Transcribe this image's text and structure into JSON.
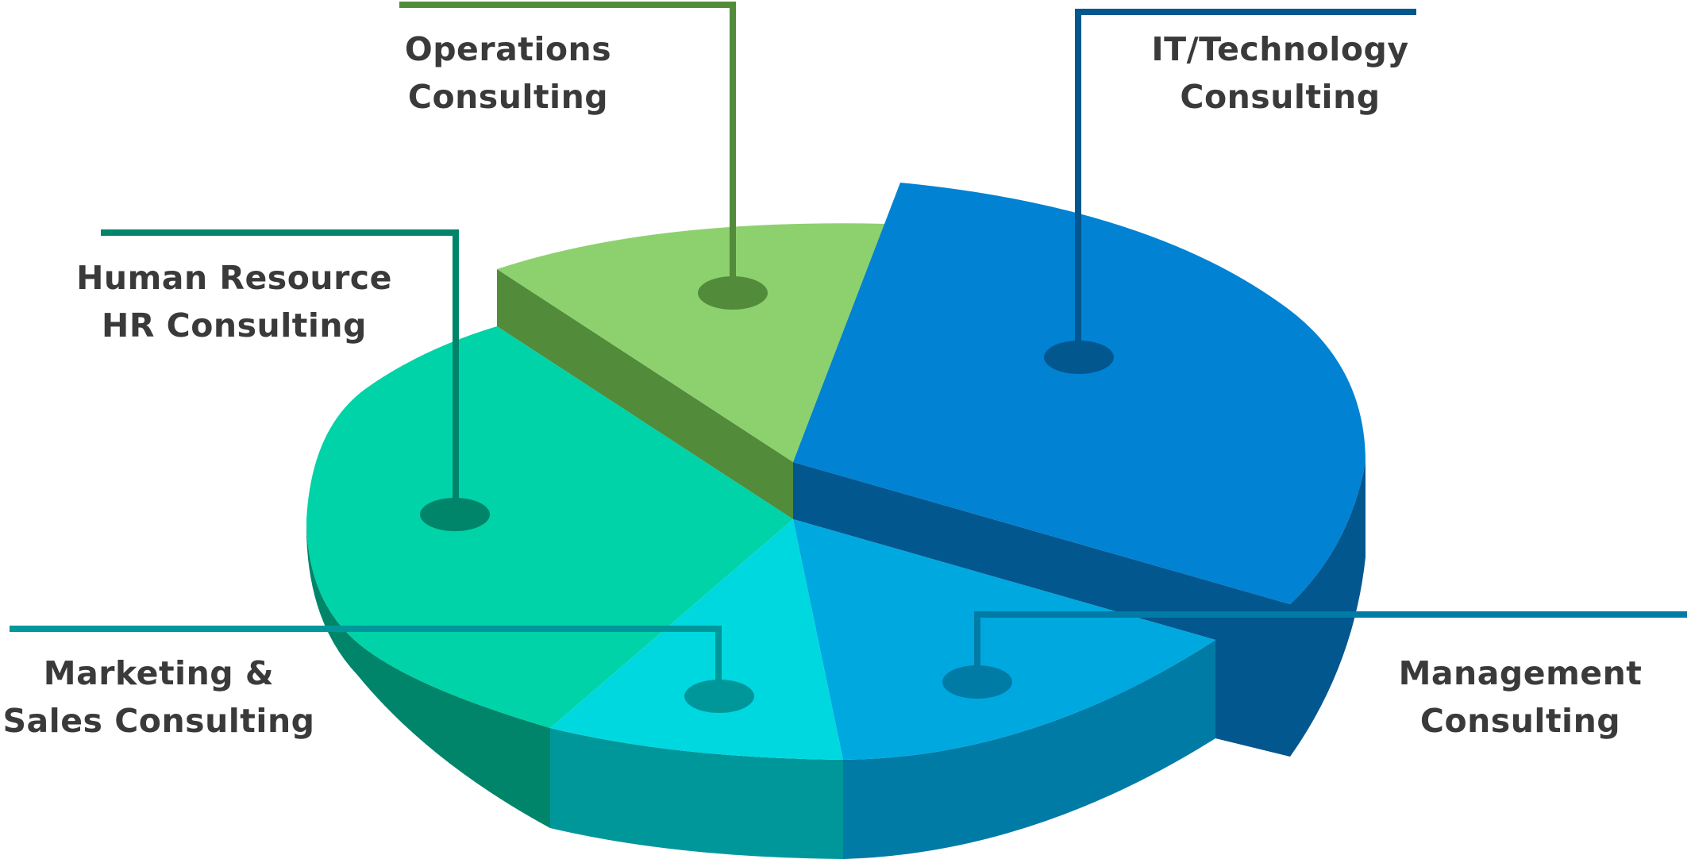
{
  "segments": [
    {
      "id": "operations",
      "label_lines": [
        "Operations",
        "Consulting"
      ],
      "colors": {
        "top": "#8DD16F",
        "side": "#528B3A",
        "leader": "#528B3A"
      }
    },
    {
      "id": "it-technology",
      "label_lines": [
        "IT/Technology",
        "Consulting"
      ],
      "colors": {
        "top": "#0182D2",
        "side": "#03578F",
        "leader": "#03578F"
      }
    },
    {
      "id": "human-resource",
      "label_lines": [
        "Human Resource",
        "HR Consulting"
      ],
      "colors": {
        "top": "#00D3A7",
        "side": "#00856A",
        "leader": "#00856A"
      }
    },
    {
      "id": "marketing-sales",
      "label_lines": [
        "Marketing &",
        "Sales Consulting"
      ],
      "colors": {
        "top": "#00D8E0",
        "side": "#00979B",
        "leader": "#00979B"
      }
    },
    {
      "id": "management",
      "label_lines": [
        "Management",
        "Consulting"
      ],
      "colors": {
        "top": "#00A8E0",
        "side": "#007BA6",
        "leader": "#007BA6"
      }
    }
  ]
}
